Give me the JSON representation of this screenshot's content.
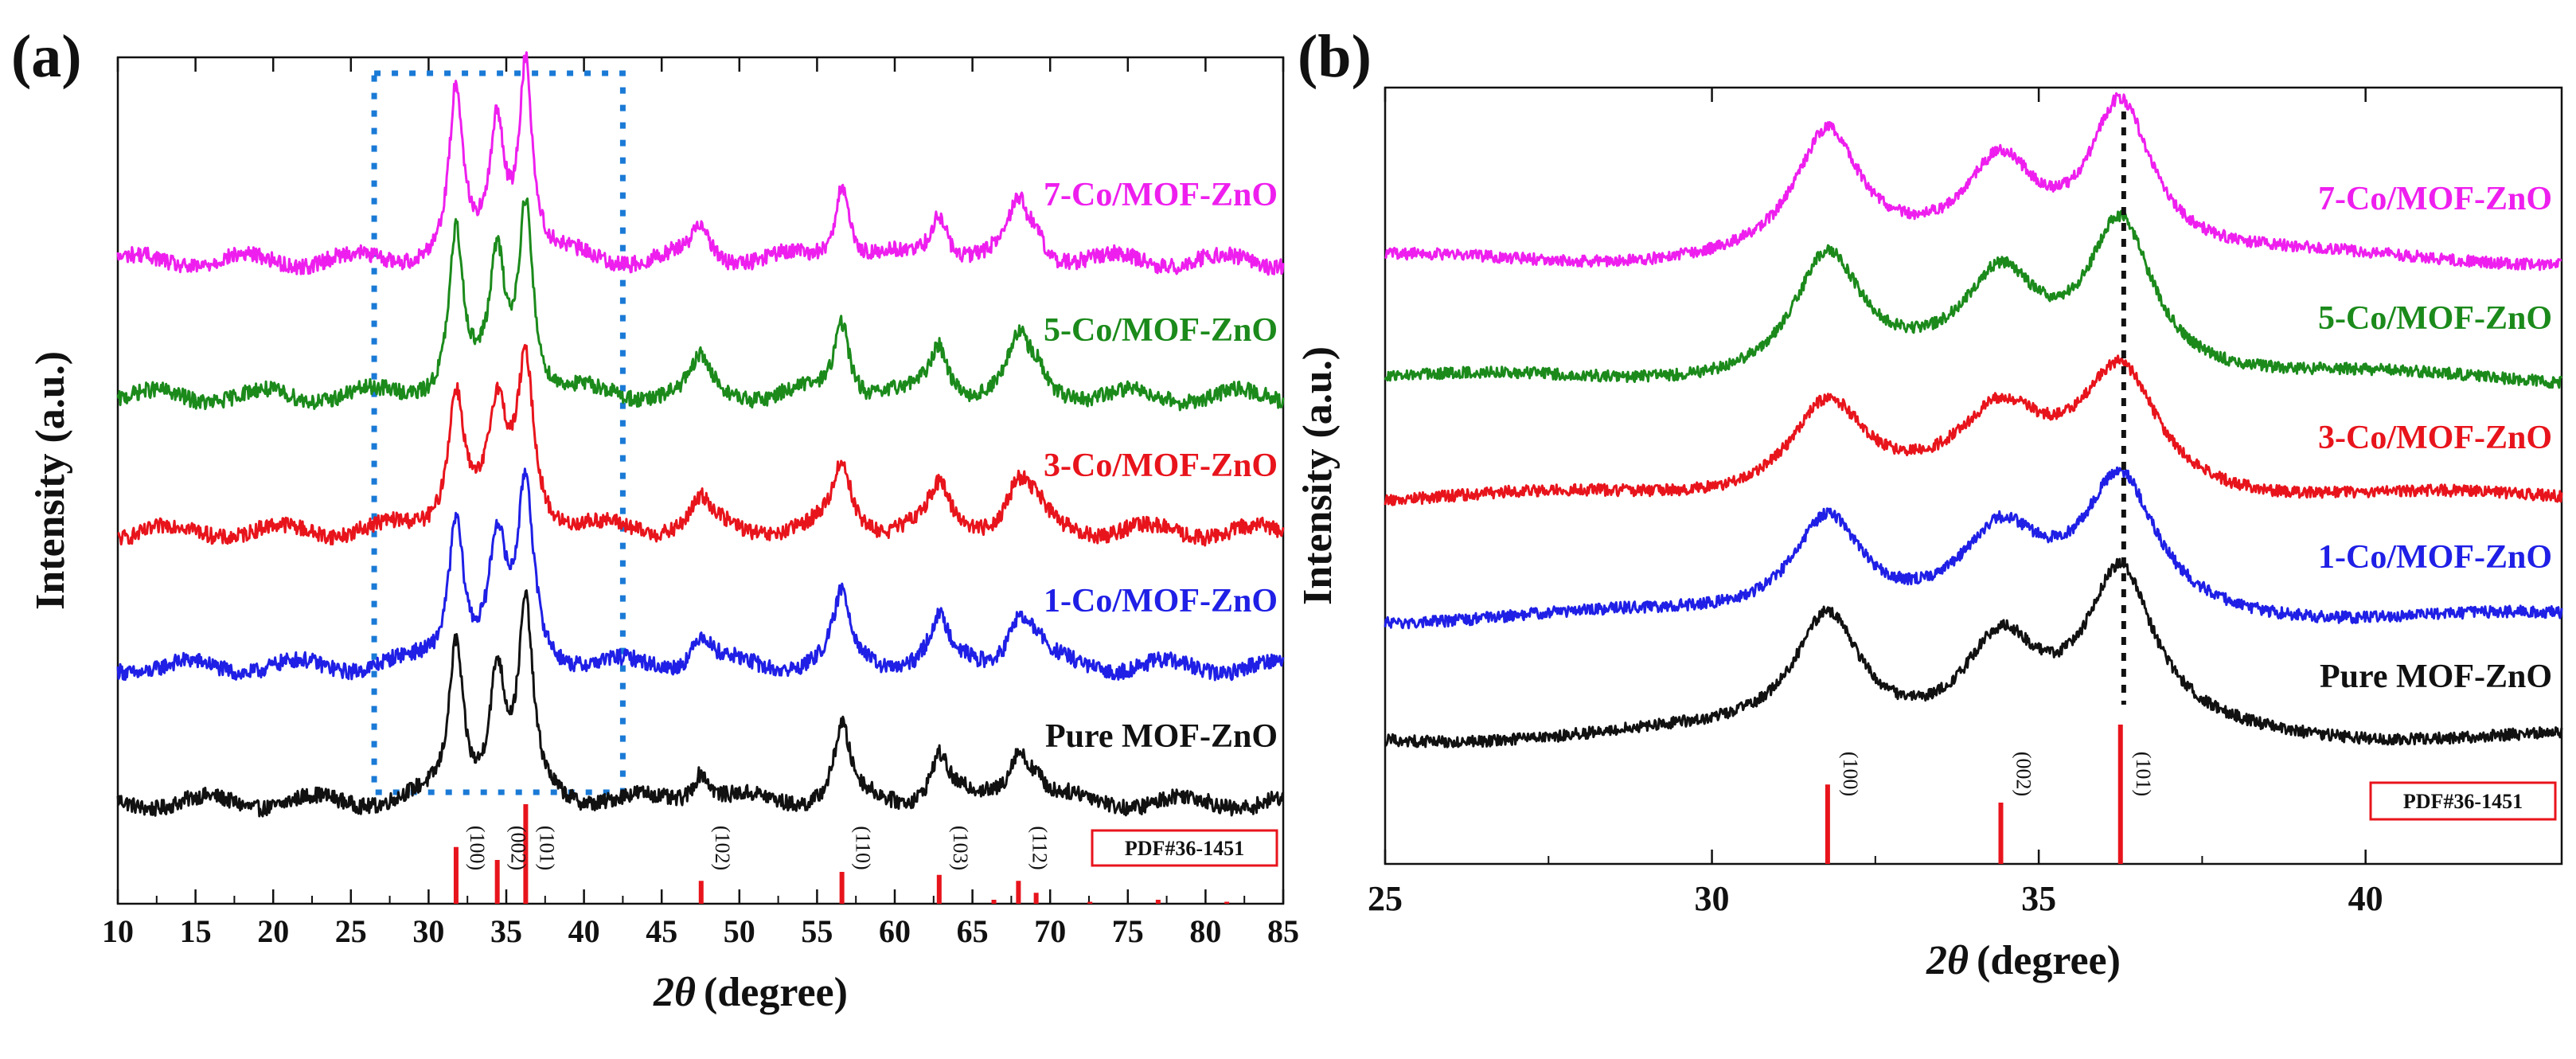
{
  "figure": {
    "panel_a_label": "(a)",
    "panel_b_label": "(b)"
  },
  "chart_data": [
    {
      "type": "line",
      "panel": "(a)",
      "title": "",
      "xlabel_symbol": "2θ",
      "xlabel_unit": "(degree)",
      "ylabel": "Intensity (a.u.)",
      "xlim": [
        10,
        85
      ],
      "xticks": [
        10,
        15,
        20,
        25,
        30,
        35,
        40,
        45,
        50,
        55,
        60,
        65,
        70,
        75,
        80,
        85
      ],
      "y_ticks_shown": false,
      "reference": {
        "label": "PDF#36-1451",
        "color": "#e8141c",
        "positions": [
          31.77,
          34.42,
          36.25,
          47.54,
          56.6,
          62.86,
          66.38,
          67.96,
          69.1,
          72.56,
          76.95,
          81.37
        ],
        "heights": [
          0.57,
          0.44,
          1.0,
          0.23,
          0.32,
          0.29,
          0.04,
          0.23,
          0.11,
          0.02,
          0.04,
          0.02
        ],
        "planes": [
          {
            "label": "(100)",
            "x": 31.77
          },
          {
            "label": "(002)",
            "x": 34.42
          },
          {
            "label": "(101)",
            "x": 36.25
          },
          {
            "label": "(102)",
            "x": 47.54
          },
          {
            "label": "(110)",
            "x": 56.6
          },
          {
            "label": "(103)",
            "x": 62.86
          },
          {
            "label": "(112)",
            "x": 67.96
          }
        ]
      },
      "highlight_box": {
        "x_range": [
          26.5,
          42.5
        ],
        "style": "dotted",
        "color": "#1a7ad6"
      },
      "series": [
        {
          "name": "Pure MOF-ZnO",
          "color": "#111111",
          "offset": 0,
          "peak_scale": 1.0,
          "peak_width": 1.0
        },
        {
          "name": "1-Co/MOF-ZnO",
          "color": "#1f1fe6",
          "offset": 1,
          "peak_scale": 0.94,
          "peak_width": 1.08
        },
        {
          "name": "3-Co/MOF-ZnO",
          "color": "#e8141c",
          "offset": 2,
          "peak_scale": 0.88,
          "peak_width": 1.18
        },
        {
          "name": "5-Co/MOF-ZnO",
          "color": "#1b8a1b",
          "offset": 3,
          "peak_scale": 1.02,
          "peak_width": 1.0
        },
        {
          "name": "7-Co/MOF-ZnO",
          "color": "#ee1fee",
          "offset": 4,
          "peak_scale": 1.05,
          "peak_width": 0.95
        }
      ],
      "peaks": [
        {
          "x": 31.77,
          "h": 0.84,
          "w": 0.55
        },
        {
          "x": 34.42,
          "h": 0.68,
          "w": 0.6
        },
        {
          "x": 36.25,
          "h": 1.0,
          "w": 0.55
        },
        {
          "x": 47.54,
          "h": 0.18,
          "w": 0.7
        },
        {
          "x": 56.6,
          "h": 0.4,
          "w": 0.6
        },
        {
          "x": 62.86,
          "h": 0.25,
          "w": 0.7
        },
        {
          "x": 67.96,
          "h": 0.28,
          "w": 0.8
        },
        {
          "x": 69.1,
          "h": 0.1,
          "w": 0.6
        }
      ]
    },
    {
      "type": "line",
      "panel": "(b)",
      "title": "",
      "xlabel_symbol": "2θ",
      "xlabel_unit": "(degree)",
      "ylabel": "Intensity (a.u.)",
      "xlim": [
        25,
        43
      ],
      "xticks": [
        25,
        30,
        35,
        40
      ],
      "y_ticks_shown": false,
      "reference": {
        "label": "PDF#36-1451",
        "color": "#e8141c",
        "positions": [
          31.77,
          34.42,
          36.25
        ],
        "heights": [
          0.57,
          0.44,
          1.0
        ],
        "planes": [
          {
            "label": "(100)",
            "x": 31.77
          },
          {
            "label": "(002)",
            "x": 34.42
          },
          {
            "label": "(101)",
            "x": 36.25
          }
        ]
      },
      "guide_line": {
        "x": 36.3,
        "style": "dotted",
        "color": "#111111"
      },
      "series": [
        {
          "name": "Pure MOF-ZnO",
          "color": "#111111",
          "offset": 0,
          "peak_scale": 1.0,
          "peak_width": 1.0
        },
        {
          "name": "1-Co/MOF-ZnO",
          "color": "#1f1fe6",
          "offset": 1,
          "peak_scale": 0.85,
          "peak_width": 1.05
        },
        {
          "name": "3-Co/MOF-ZnO",
          "color": "#e8141c",
          "offset": 2,
          "peak_scale": 0.8,
          "peak_width": 1.15
        },
        {
          "name": "5-Co/MOF-ZnO",
          "color": "#1b8a1b",
          "offset": 3,
          "peak_scale": 1.0,
          "peak_width": 1.0
        },
        {
          "name": "7-Co/MOF-ZnO",
          "color": "#ee1fee",
          "offset": 4,
          "peak_scale": 1.0,
          "peak_width": 0.95
        }
      ],
      "peaks": [
        {
          "x": 31.77,
          "h": 0.78,
          "w": 0.62
        },
        {
          "x": 34.42,
          "h": 0.6,
          "w": 0.7
        },
        {
          "x": 36.25,
          "h": 1.0,
          "w": 0.62
        }
      ]
    }
  ]
}
